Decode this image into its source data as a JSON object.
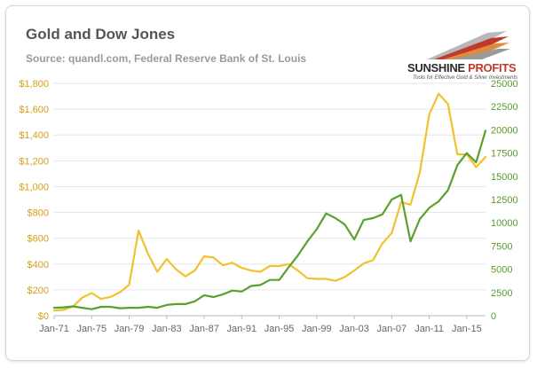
{
  "header": {
    "title": "Gold and Dow Jones",
    "source": "Source: quandl.com, Federal Reserve Bank of St. Louis"
  },
  "logo": {
    "name_first": "SUNSHINE",
    "name_second": "PROFITS",
    "tagline": "Tools for Effective Gold & Silver Investments"
  },
  "colors": {
    "gold": "#f2c12e",
    "dow": "#5aa02c",
    "left_axis": "#d4a017",
    "right_axis": "#5a9a2a"
  },
  "chart_data": {
    "type": "line",
    "x": [
      "Jan-71",
      "Jan-72",
      "Jan-73",
      "Jan-74",
      "Jan-75",
      "Jan-76",
      "Jan-77",
      "Jan-78",
      "Jan-79",
      "Jan-80",
      "Jan-81",
      "Jan-82",
      "Jan-83",
      "Jan-84",
      "Jan-85",
      "Jan-86",
      "Jan-87",
      "Jan-88",
      "Jan-89",
      "Jan-90",
      "Jan-91",
      "Jan-92",
      "Jan-93",
      "Jan-94",
      "Jan-95",
      "Jan-96",
      "Jan-97",
      "Jan-98",
      "Jan-99",
      "Jan-00",
      "Jan-01",
      "Jan-02",
      "Jan-03",
      "Jan-04",
      "Jan-05",
      "Jan-06",
      "Jan-07",
      "Jan-08",
      "Jan-09",
      "Jan-10",
      "Jan-11",
      "Jan-12",
      "Jan-13",
      "Jan-14",
      "Jan-15",
      "Jan-16",
      "Jan-17"
    ],
    "series": [
      {
        "name": "",
        "axis": "left",
        "values": [
          40,
          45,
          70,
          140,
          175,
          130,
          145,
          180,
          240,
          660,
          480,
          340,
          440,
          360,
          305,
          350,
          460,
          450,
          390,
          410,
          370,
          350,
          340,
          385,
          385,
          400,
          350,
          290,
          285,
          285,
          270,
          300,
          350,
          405,
          430,
          560,
          640,
          880,
          860,
          1110,
          1560,
          1720,
          1640,
          1250,
          1250,
          1150,
          1230
        ]
      },
      {
        "name": "",
        "axis": "right",
        "values": [
          850,
          900,
          1000,
          850,
          700,
          950,
          950,
          800,
          850,
          850,
          950,
          850,
          1150,
          1250,
          1250,
          1550,
          2200,
          2000,
          2300,
          2700,
          2600,
          3200,
          3300,
          3850,
          3850,
          5200,
          6500,
          8000,
          9300,
          11000,
          10500,
          9800,
          8200,
          10300,
          10500,
          10900,
          12500,
          13000,
          8000,
          10400,
          11600,
          12300,
          13500,
          16200,
          17500,
          16500,
          19900
        ]
      }
    ],
    "y_left": {
      "ticks": [
        "$0",
        "$200",
        "$400",
        "$600",
        "$800",
        "$1,000",
        "$1,200",
        "$1,400",
        "$1,600",
        "$1,800"
      ],
      "range": [
        0,
        1800
      ]
    },
    "y_right": {
      "ticks": [
        "0",
        "2500",
        "5000",
        "7500",
        "10000",
        "12500",
        "15000",
        "17500",
        "20000",
        "22500",
        "25000"
      ],
      "range": [
        0,
        25000
      ]
    },
    "x_ticks": [
      "Jan-71",
      "Jan-75",
      "Jan-79",
      "Jan-83",
      "Jan-87",
      "Jan-91",
      "Jan-95",
      "Jan-99",
      "Jan-03",
      "Jan-07",
      "Jan-11",
      "Jan-15"
    ],
    "grid": "horizontal",
    "legend": "none"
  }
}
